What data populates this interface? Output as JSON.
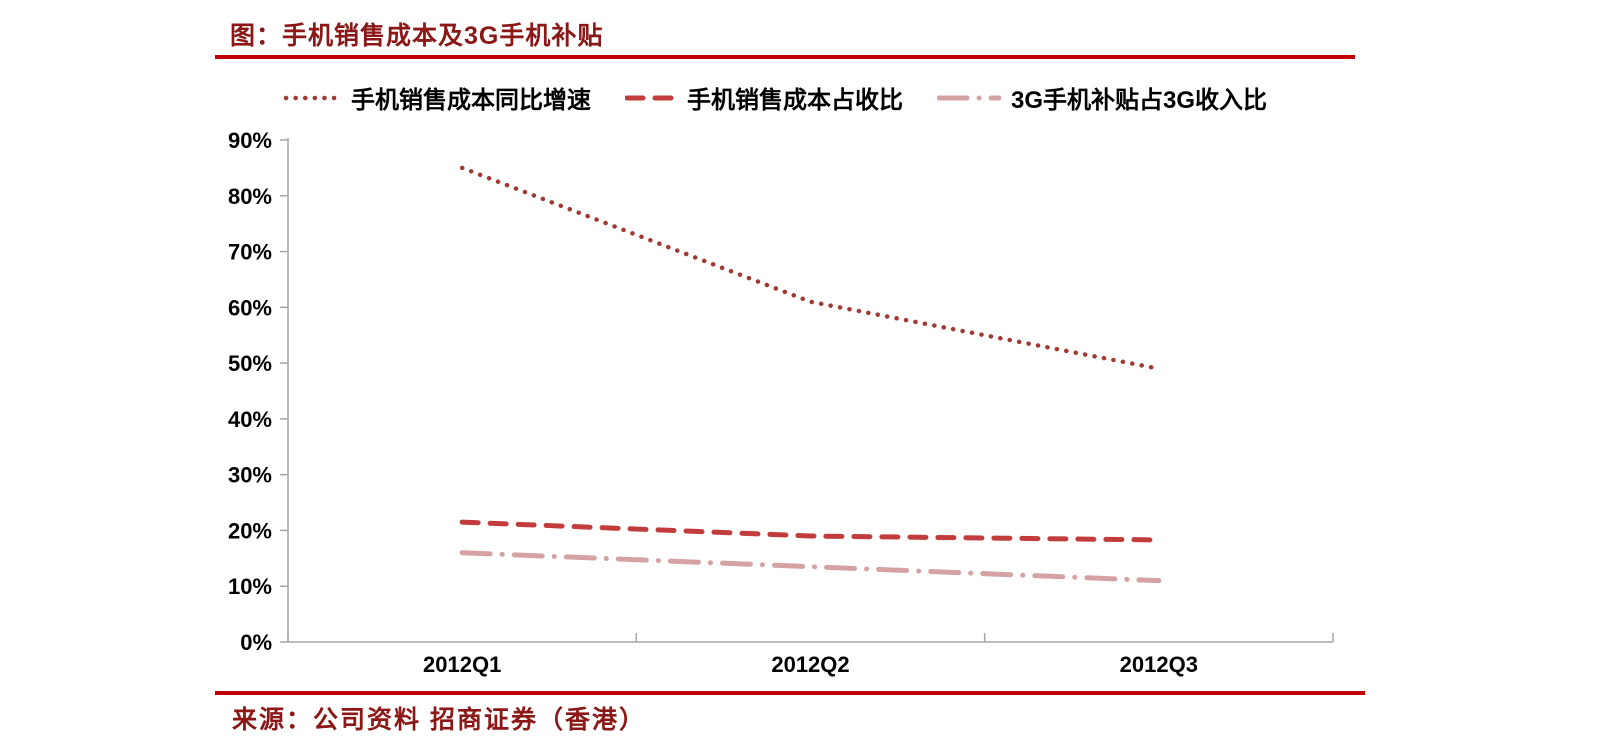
{
  "header": {
    "title": "图：手机销售成本及3G手机补贴"
  },
  "footer": {
    "source": "来源：公司资料 招商证券（香港）"
  },
  "colors": {
    "title_text": "#8B1717",
    "separator_line": "#C00000",
    "axis_line": "#A6A6A6",
    "tick_text": "#000000"
  },
  "chart_data": {
    "type": "line",
    "categories": [
      "2012Q1",
      "2012Q2",
      "2012Q3"
    ],
    "series": [
      {
        "name": "手机销售成本同比增速",
        "values": [
          85,
          61,
          49
        ],
        "color": "#A23832",
        "style": "dotted"
      },
      {
        "name": "手机销售成本占收比",
        "values": [
          21.5,
          19,
          18.3
        ],
        "color": "#C23C3C",
        "style": "dashed"
      },
      {
        "name": "3G手机补贴占3G收入比",
        "values": [
          16,
          13.5,
          11
        ],
        "color": "#D5A2A3",
        "style": "dash-dot"
      }
    ],
    "ylim": [
      0,
      90
    ],
    "ytick_step": 10,
    "yticks": [
      "0%",
      "10%",
      "20%",
      "30%",
      "40%",
      "50%",
      "60%",
      "70%",
      "80%",
      "90%"
    ],
    "grid": false,
    "legend_position": "top",
    "title": "图：手机销售成本及3G手机补贴",
    "xlabel": "",
    "ylabel": ""
  }
}
